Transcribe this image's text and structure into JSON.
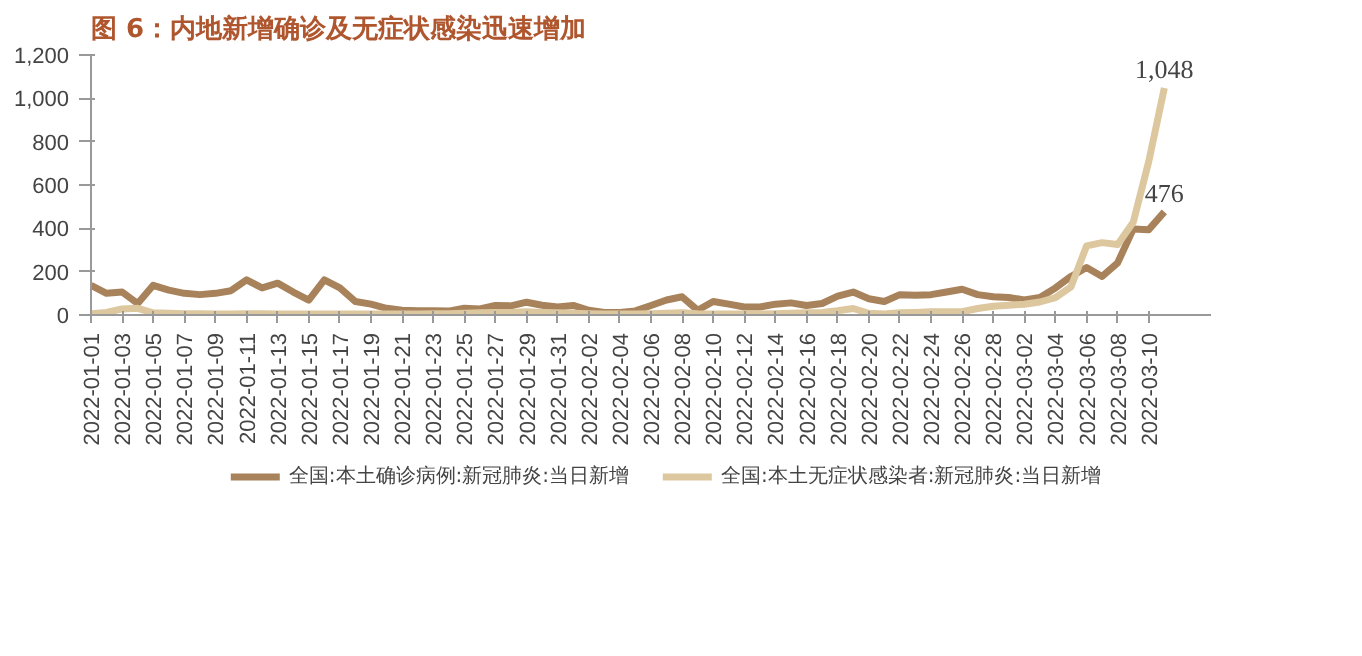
{
  "chart_data": {
    "type": "line",
    "title": "图 6：内地新增确诊及无症状感染迅速增加",
    "x": [
      "2022-01-01",
      "2022-01-02",
      "2022-01-03",
      "2022-01-04",
      "2022-01-05",
      "2022-01-06",
      "2022-01-07",
      "2022-01-08",
      "2022-01-09",
      "2022-01-10",
      "2022-01-11",
      "2022-01-12",
      "2022-01-13",
      "2022-01-14",
      "2022-01-15",
      "2022-01-16",
      "2022-01-17",
      "2022-01-18",
      "2022-01-19",
      "2022-01-20",
      "2022-01-21",
      "2022-01-22",
      "2022-01-23",
      "2022-01-24",
      "2022-01-25",
      "2022-01-26",
      "2022-01-27",
      "2022-01-28",
      "2022-01-29",
      "2022-01-30",
      "2022-01-31",
      "2022-02-01",
      "2022-02-02",
      "2022-02-03",
      "2022-02-04",
      "2022-02-05",
      "2022-02-06",
      "2022-02-07",
      "2022-02-08",
      "2022-02-09",
      "2022-02-10",
      "2022-02-11",
      "2022-02-12",
      "2022-02-13",
      "2022-02-14",
      "2022-02-15",
      "2022-02-16",
      "2022-02-17",
      "2022-02-18",
      "2022-02-19",
      "2022-02-20",
      "2022-02-21",
      "2022-02-22",
      "2022-02-23",
      "2022-02-24",
      "2022-02-25",
      "2022-02-26",
      "2022-02-27",
      "2022-02-28",
      "2022-03-01",
      "2022-03-02",
      "2022-03-03",
      "2022-03-04",
      "2022-03-05",
      "2022-03-06",
      "2022-03-07",
      "2022-03-08",
      "2022-03-09",
      "2022-03-10",
      "2022-03-11"
    ],
    "series": [
      {
        "name": "全国:本土确诊病例:新冠肺炎:当日新增",
        "color": "#a8825a",
        "values": [
          137,
          100,
          106,
          53,
          137,
          115,
          100,
          94,
          100,
          112,
          162,
          125,
          147,
          106,
          69,
          162,
          125,
          62,
          50,
          31,
          22,
          20,
          20,
          18,
          31,
          28,
          44,
          42,
          59,
          45,
          37,
          44,
          22,
          12,
          12,
          19,
          44,
          69,
          84,
          22,
          62,
          50,
          37,
          37,
          50,
          56,
          44,
          53,
          87,
          106,
          75,
          62,
          94,
          91,
          94,
          106,
          119,
          94,
          84,
          81,
          69,
          81,
          125,
          178,
          219,
          178,
          241,
          397,
          394,
          476
        ],
        "value_labels": [
          null,
          null,
          null,
          null,
          null,
          null,
          null,
          null,
          null,
          null,
          null,
          null,
          null,
          null,
          null,
          null,
          null,
          null,
          null,
          null,
          null,
          null,
          null,
          null,
          null,
          null,
          null,
          null,
          null,
          null,
          null,
          null,
          null,
          null,
          null,
          null,
          null,
          null,
          null,
          null,
          null,
          null,
          null,
          null,
          null,
          null,
          null,
          null,
          null,
          null,
          null,
          null,
          null,
          null,
          null,
          null,
          null,
          null,
          null,
          null,
          null,
          null,
          null,
          null,
          null,
          null,
          null,
          null,
          null,
          "476"
        ]
      },
      {
        "name": "全国:本土无症状感染者:新冠肺炎:当日新增",
        "color": "#dcc79e",
        "values": [
          6,
          12,
          28,
          31,
          10,
          8,
          6,
          6,
          5,
          5,
          6,
          6,
          5,
          5,
          5,
          5,
          5,
          5,
          5,
          5,
          5,
          5,
          6,
          6,
          8,
          10,
          12,
          12,
          15,
          12,
          10,
          8,
          6,
          5,
          5,
          5,
          6,
          8,
          10,
          6,
          5,
          5,
          5,
          5,
          6,
          8,
          10,
          12,
          20,
          30,
          8,
          5,
          10,
          12,
          15,
          15,
          15,
          30,
          40,
          45,
          50,
          60,
          80,
          130,
          319,
          334,
          325,
          428,
          709,
          1048
        ],
        "value_labels": [
          null,
          null,
          null,
          null,
          null,
          null,
          null,
          null,
          null,
          null,
          null,
          null,
          null,
          null,
          null,
          null,
          null,
          null,
          null,
          null,
          null,
          null,
          null,
          null,
          null,
          null,
          null,
          null,
          null,
          null,
          null,
          null,
          null,
          null,
          null,
          null,
          null,
          null,
          null,
          null,
          null,
          null,
          null,
          null,
          null,
          null,
          null,
          null,
          null,
          null,
          null,
          null,
          null,
          null,
          null,
          null,
          null,
          null,
          null,
          null,
          null,
          null,
          null,
          null,
          null,
          null,
          null,
          null,
          null,
          "1,048"
        ]
      }
    ],
    "xlim": [
      "2022-01-01",
      "2022-03-14"
    ],
    "xticks": [
      "2022-01-01",
      "2022-01-03",
      "2022-01-05",
      "2022-01-07",
      "2022-01-09",
      "2022-01-11",
      "2022-01-13",
      "2022-01-15",
      "2022-01-17",
      "2022-01-19",
      "2022-01-21",
      "2022-01-23",
      "2022-01-25",
      "2022-01-27",
      "2022-01-29",
      "2022-01-31",
      "2022-02-02",
      "2022-02-04",
      "2022-02-06",
      "2022-02-08",
      "2022-02-10",
      "2022-02-12",
      "2022-02-14",
      "2022-02-16",
      "2022-02-18",
      "2022-02-20",
      "2022-02-22",
      "2022-02-24",
      "2022-02-26",
      "2022-02-28",
      "2022-03-02",
      "2022-03-04",
      "2022-03-06",
      "2022-03-08",
      "2022-03-10"
    ],
    "ylim": [
      0,
      1200
    ],
    "yticks": [
      {
        "value": 0,
        "label": "0"
      },
      {
        "value": 200,
        "label": "200"
      },
      {
        "value": 400,
        "label": "400"
      },
      {
        "value": 600,
        "label": "600"
      },
      {
        "value": 800,
        "label": "800"
      },
      {
        "value": 1000,
        "label": "1,000"
      },
      {
        "value": 1200,
        "label": "1,200"
      }
    ],
    "grid": false,
    "legend": "bottom",
    "marker": "none",
    "line_style": "solid"
  }
}
